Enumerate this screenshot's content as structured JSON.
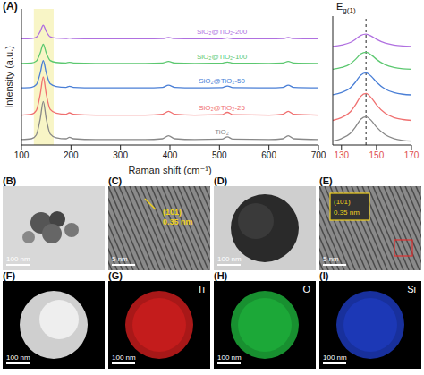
{
  "chart_data": [
    {
      "type": "line",
      "panel_label": "(A)",
      "x_label": "Raman shift (cm⁻¹)",
      "y_label": "Intensity (a.u.)",
      "xlim": [
        100,
        700
      ],
      "xticks": [
        100,
        200,
        300,
        400,
        500,
        600,
        700
      ],
      "ylim": [
        0,
        100
      ],
      "tick_labels": "x",
      "highlight_range": [
        125,
        165
      ],
      "x": [
        100,
        120,
        130,
        138,
        144,
        150,
        158,
        170,
        190,
        197,
        205,
        250,
        350,
        385,
        397,
        410,
        450,
        505,
        516,
        527,
        600,
        628,
        639,
        650,
        700
      ],
      "series": [
        {
          "name": "TiO₂",
          "color": "#888888",
          "values": [
            4,
            4.6,
            7.4,
            19.4,
            32,
            19.4,
            8.2,
            5.4,
            4.6,
            5.7,
            4.6,
            4,
            4,
            4.6,
            6.8,
            4.6,
            4,
            4.3,
            6,
            4.3,
            4,
            4.6,
            6.8,
            4.6,
            4
          ]
        },
        {
          "name": "SiO₂@TiO₂-25",
          "color": "#f07070",
          "values": [
            22,
            22.6,
            25.4,
            37.4,
            50,
            37.4,
            26.2,
            23.4,
            22.6,
            23.7,
            22.6,
            22,
            22,
            22.6,
            24.8,
            22.6,
            22,
            22.3,
            24,
            22.3,
            22,
            22.6,
            24.8,
            22.6,
            22
          ]
        },
        {
          "name": "SiO₂@TiO₂-50",
          "color": "#4a7fd6",
          "values": [
            42,
            42.4,
            44.4,
            53,
            62,
            53,
            45,
            43,
            42.4,
            43.2,
            42.4,
            42,
            42,
            42.4,
            44,
            42.4,
            42,
            42.2,
            43.4,
            42.2,
            42,
            42.4,
            44,
            42.4,
            42
          ]
        },
        {
          "name": "SiO₂@TiO₂-100",
          "color": "#5cc870",
          "values": [
            60,
            60.3,
            61.7,
            67.7,
            74,
            67.7,
            62.1,
            60.7,
            60.3,
            60.8,
            60.3,
            60,
            60,
            60.3,
            61.4,
            60.3,
            60,
            60.1,
            61,
            60.1,
            60,
            60.3,
            61.4,
            60.3,
            60
          ]
        },
        {
          "name": "SiO₂@TiO₂-200",
          "color": "#b070e0",
          "values": [
            78,
            78.2,
            79.2,
            83.5,
            88,
            83.5,
            79.5,
            78.5,
            78.2,
            78.6,
            78.2,
            78,
            78,
            78.2,
            79,
            78.2,
            78,
            78.1,
            78.7,
            78.1,
            78,
            78.2,
            79,
            78.2,
            78
          ]
        }
      ]
    },
    {
      "type": "line",
      "title": "Eg(1)",
      "xlim": [
        125,
        170
      ],
      "xticks": [
        130,
        150,
        170
      ],
      "ylim": [
        0,
        100
      ],
      "tick_labels": "x",
      "tick_color": "#e05050",
      "reference_x": 144,
      "x": [
        125,
        130,
        135,
        138,
        141,
        144,
        147,
        150,
        155,
        160,
        165,
        170
      ],
      "series": [
        {
          "color": "#888888",
          "values": [
            3,
            5,
            9,
            14,
            20,
            22,
            19,
            14,
            8,
            5,
            3.6,
            3
          ]
        },
        {
          "color": "#f07070",
          "values": [
            19.1,
            21.3,
            25.7,
            31.2,
            37.8,
            40,
            36.7,
            31.2,
            24.6,
            21.3,
            19.8,
            19.1
          ]
        },
        {
          "color": "#4a7fd6",
          "values": [
            38.9,
            40.7,
            44.3,
            48.8,
            54.2,
            56,
            53.3,
            48.8,
            43.4,
            40.7,
            39.4,
            38.9
          ]
        },
        {
          "color": "#5cc870",
          "values": [
            58.7,
            60.1,
            62.9,
            66.4,
            70.6,
            72,
            69.9,
            66.4,
            62.2,
            60.1,
            59.1,
            58.7
          ]
        },
        {
          "color": "#b070e0",
          "values": [
            76.5,
            77.5,
            79.5,
            82,
            85,
            86,
            84.5,
            82,
            79,
            77.5,
            76.8,
            76.5
          ]
        }
      ]
    }
  ],
  "panels": [
    {
      "label": "(B)",
      "type": "tem",
      "scale_bar": "100 nm"
    },
    {
      "label": "(C)",
      "type": "hrtem",
      "scale_bar": "5 nm",
      "plane": "(101)",
      "spacing": "0.35 nm"
    },
    {
      "label": "(D)",
      "type": "tem_sphere",
      "scale_bar": "100 nm"
    },
    {
      "label": "(E)",
      "type": "hrtem_inset",
      "scale_bar": "5 nm",
      "plane": "(101)",
      "spacing": "0.35 nm"
    },
    {
      "label": "(F)",
      "type": "haadf",
      "scale_bar": "100 nm"
    },
    {
      "label": "(G)",
      "type": "map",
      "element": "Ti",
      "color": "#e02020",
      "scale_bar": "100 nm"
    },
    {
      "label": "(H)",
      "type": "map",
      "element": "O",
      "color": "#20c040",
      "scale_bar": "100 nm"
    },
    {
      "label": "(I)",
      "type": "map",
      "element": "Si",
      "color": "#2040d0",
      "scale_bar": "100 nm"
    }
  ]
}
